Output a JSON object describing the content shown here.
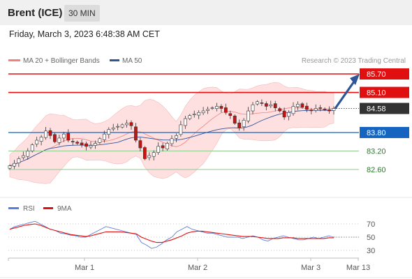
{
  "header": {
    "title": "Brent (ICE)",
    "timeframe": "30 MIN"
  },
  "datetime": "Friday, March 3, 2023 6:48:38 AM CET",
  "legend": {
    "bollinger": "MA 20 + Bollinger Bands",
    "ma50": "MA 50"
  },
  "credit": "Research © 2023 Trading Central",
  "colors": {
    "resistance": "#e01010",
    "current": "#333333",
    "support_blue": "#1565c0",
    "support_green": "#2a7a2a",
    "band_fill": "#ffe0e0",
    "ma50": "#2f5597",
    "rsi": "#5b7fd6",
    "rsi_ma": "#e01010",
    "candle_up": "#ffffff",
    "candle_down": "#cc1010"
  },
  "chart_data": [
    {
      "type": "candlestick",
      "y_range": [
        82.0,
        86.0
      ],
      "x_ticks": [
        "Mar 1",
        "Mar 2",
        "Mar 3",
        "Mar 13"
      ],
      "current_price": "84.58",
      "levels": [
        {
          "label": "85.70",
          "value": 85.7,
          "kind": "resistance"
        },
        {
          "label": "85.10",
          "value": 85.1,
          "kind": "resistance"
        },
        {
          "label": "84.58",
          "value": 84.58,
          "kind": "current"
        },
        {
          "label": "83.80",
          "value": 83.8,
          "kind": "support_blue"
        },
        {
          "label": "83.20",
          "value": 83.2,
          "kind": "support_green"
        },
        {
          "label": "82.60",
          "value": 82.6,
          "kind": "support_green"
        }
      ],
      "close_series": [
        82.72,
        82.8,
        82.95,
        83.05,
        83.2,
        83.4,
        83.55,
        83.65,
        83.85,
        83.7,
        83.5,
        83.62,
        83.75,
        83.55,
        83.5,
        83.45,
        83.4,
        83.35,
        83.38,
        83.45,
        83.6,
        83.75,
        83.9,
        83.95,
        84.0,
        84.05,
        84.1,
        84.02,
        83.55,
        83.3,
        82.95,
        83.05,
        83.15,
        83.35,
        83.3,
        83.45,
        83.6,
        83.7,
        84.05,
        84.25,
        84.35,
        84.4,
        84.45,
        84.5,
        84.55,
        84.6,
        84.65,
        84.58,
        84.45,
        84.35,
        84.1,
        83.95,
        84.2,
        84.5,
        84.7,
        84.8,
        84.75,
        84.65,
        84.7,
        84.6,
        84.5,
        84.3,
        84.45,
        84.65,
        84.72,
        84.62,
        84.55,
        84.52,
        84.58,
        84.6,
        84.55,
        84.5,
        84.58
      ],
      "projection": {
        "from": 84.58,
        "to": 85.7
      }
    },
    {
      "type": "line",
      "name": "RSI",
      "y_ticks": [
        70,
        50,
        30
      ],
      "series": [
        {
          "name": "RSI",
          "values": [
            62,
            66,
            68,
            70,
            72,
            74,
            70,
            66,
            62,
            60,
            56,
            55,
            53,
            52,
            50,
            50,
            54,
            58,
            62,
            66,
            64,
            62,
            60,
            58,
            56,
            54,
            42,
            38,
            33,
            35,
            40,
            46,
            50,
            58,
            62,
            66,
            62,
            60,
            58,
            56,
            56,
            54,
            52,
            50,
            50,
            50,
            48,
            50,
            52,
            50,
            46,
            44,
            48,
            50,
            52,
            50,
            48,
            46,
            46,
            48,
            50,
            48,
            50,
            52,
            50
          ]
        },
        {
          "name": "9MA",
          "values": [
            62,
            64,
            66,
            68,
            69,
            70,
            68,
            65,
            62,
            60,
            58,
            56,
            54,
            53,
            52,
            51,
            52,
            54,
            56,
            58,
            58,
            58,
            58,
            57,
            56,
            55,
            50,
            47,
            44,
            42,
            42,
            44,
            46,
            49,
            52,
            56,
            58,
            59,
            59,
            58,
            57,
            56,
            55,
            54,
            53,
            52,
            51,
            51,
            51,
            50,
            49,
            48,
            48,
            48,
            49,
            49,
            49,
            48,
            48,
            48,
            48,
            48,
            48,
            49,
            49
          ]
        }
      ]
    }
  ]
}
